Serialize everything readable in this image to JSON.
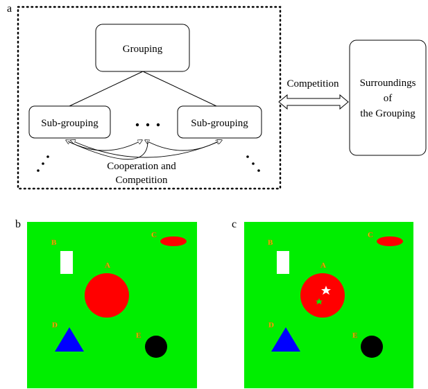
{
  "panel_a": {
    "letter": "a",
    "grouping": "Grouping",
    "sub_grouping_left": "Sub-grouping",
    "sub_grouping_right": "Sub-grouping",
    "ellipsis": "•  •  •",
    "cooperation_line1": "Cooperation and",
    "cooperation_line2": "Competition",
    "competition": "Competition",
    "surroundings_line1": "Surroundings",
    "surroundings_line2": "of",
    "surroundings_line3": "the Grouping"
  },
  "panel_b": {
    "letter": "b",
    "labels": {
      "A": "A",
      "B": "B",
      "C": "C",
      "D": "D",
      "E": "E"
    }
  },
  "panel_c": {
    "letter": "c",
    "labels": {
      "A": "A",
      "B": "B",
      "C": "C",
      "D": "D",
      "E": "E"
    }
  },
  "colors": {
    "background_green": "#00ee00",
    "circle_red": "#ff0000",
    "ellipse_red": "#ff0000",
    "triangle_blue": "#0000ff",
    "circle_black": "#000000",
    "rect_white": "#ffffff",
    "label_gold": "#f6c400"
  }
}
